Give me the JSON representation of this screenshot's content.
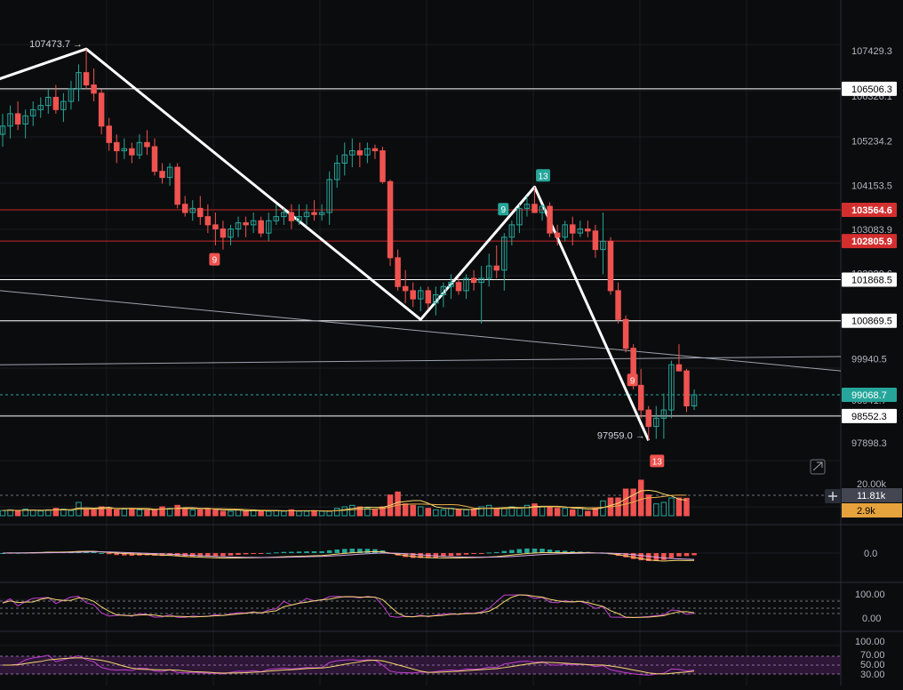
{
  "theme": {
    "background": "#0b0c0e",
    "grid": "#1a1c20",
    "up": "#26a69a",
    "down": "#ef5350",
    "axis_text": "#b2b5be",
    "level_white": "#ffffff",
    "level_red": "#c62828",
    "trend_white": "#ffffff",
    "ma_yellow": "#f5d76e",
    "ma_orange": "#e8b04a",
    "ma_purple": "#c23fd1",
    "current_price": "#26a69a",
    "volume_badge": "#e6a23c"
  },
  "chart_data": [
    {
      "type": "candlestick",
      "panel": "price",
      "title": "",
      "ylim": [
        97600,
        107800
      ],
      "y_ticks": [
        "107429.3",
        "106326.1",
        "105234.2",
        "104153.5",
        "103083.9",
        "102020.6",
        "100869.5",
        "99940.5",
        "98941.7",
        "97898.3"
      ],
      "candles": [
        [
          105400,
          105900,
          105100,
          105600
        ],
        [
          105600,
          106100,
          105300,
          105900
        ],
        [
          105900,
          106200,
          105500,
          105650
        ],
        [
          105650,
          106000,
          105300,
          105850
        ],
        [
          105850,
          106200,
          105600,
          106000
        ],
        [
          106000,
          106300,
          105800,
          106100
        ],
        [
          106100,
          106500,
          105900,
          106300
        ],
        [
          106300,
          106600,
          105900,
          106000
        ],
        [
          106000,
          106400,
          105700,
          106200
        ],
        [
          106200,
          106700,
          106000,
          106500
        ],
        [
          106500,
          107100,
          106200,
          106900
        ],
        [
          106900,
          107474,
          106500,
          106600
        ],
        [
          106600,
          107000,
          106200,
          106400
        ],
        [
          106400,
          106500,
          105400,
          105600
        ],
        [
          105600,
          105800,
          105000,
          105200
        ],
        [
          105200,
          105400,
          104700,
          105000
        ],
        [
          105000,
          105300,
          104800,
          105050
        ],
        [
          105050,
          105200,
          104700,
          104900
        ],
        [
          104900,
          105400,
          104800,
          105200
        ],
        [
          105200,
          105500,
          104900,
          105100
        ],
        [
          105100,
          105300,
          104400,
          104500
        ],
        [
          104500,
          104700,
          104200,
          104350
        ],
        [
          104350,
          104700,
          104150,
          104600
        ],
        [
          104600,
          104700,
          103600,
          103700
        ],
        [
          103700,
          103900,
          103400,
          103500
        ],
        [
          103500,
          103800,
          103300,
          103600
        ],
        [
          103600,
          103900,
          103200,
          103400
        ],
        [
          103400,
          103700,
          103000,
          103200
        ],
        [
          103200,
          103500,
          102700,
          103100
        ],
        [
          103100,
          103300,
          102600,
          102900
        ],
        [
          102900,
          103200,
          102700,
          103100
        ],
        [
          103100,
          103400,
          102900,
          103250
        ],
        [
          103250,
          103400,
          102900,
          103200
        ],
        [
          103200,
          103500,
          103000,
          103300
        ],
        [
          103300,
          103400,
          102900,
          103000
        ],
        [
          103000,
          103500,
          102800,
          103300
        ],
        [
          103300,
          103700,
          103200,
          103400
        ],
        [
          103400,
          103600,
          103200,
          103500
        ],
        [
          103500,
          103700,
          103100,
          103300
        ],
        [
          103300,
          103700,
          103200,
          103400
        ],
        [
          103400,
          103700,
          103200,
          103500
        ],
        [
          103500,
          103800,
          103300,
          103450
        ],
        [
          103450,
          103700,
          103300,
          103500
        ],
        [
          103500,
          104500,
          103200,
          104300
        ],
        [
          104300,
          104900,
          104100,
          104700
        ],
        [
          104700,
          105200,
          104400,
          104900
        ],
        [
          104900,
          105300,
          104600,
          105000
        ],
        [
          105000,
          105200,
          104600,
          104900
        ],
        [
          104900,
          105200,
          104700,
          105050
        ],
        [
          105050,
          105150,
          104800,
          105000
        ],
        [
          105000,
          105100,
          104200,
          104250
        ],
        [
          104250,
          104300,
          102200,
          102400
        ],
        [
          102400,
          102600,
          101600,
          101700
        ],
        [
          101700,
          102100,
          101300,
          101600
        ],
        [
          101600,
          101800,
          101200,
          101400
        ],
        [
          101400,
          101700,
          101100,
          101600
        ],
        [
          101600,
          101700,
          101150,
          101300
        ],
        [
          101300,
          101700,
          101000,
          101500
        ],
        [
          101500,
          101800,
          101200,
          101700
        ],
        [
          101700,
          102000,
          101400,
          101800
        ],
        [
          101800,
          101900,
          101500,
          101600
        ],
        [
          101600,
          102000,
          101400,
          101900
        ],
        [
          101900,
          102100,
          101600,
          101800
        ],
        [
          101800,
          102200,
          100800,
          101900
        ],
        [
          101900,
          102500,
          101700,
          102200
        ],
        [
          102200,
          102700,
          101900,
          102100
        ],
        [
          102100,
          103000,
          101600,
          102900
        ],
        [
          102900,
          103300,
          102700,
          103200
        ],
        [
          103200,
          103700,
          103000,
          103600
        ],
        [
          103600,
          103900,
          103400,
          103700
        ],
        [
          103700,
          104120,
          103500,
          103500
        ],
        [
          103500,
          103700,
          103300,
          103650
        ],
        [
          103650,
          103750,
          102900,
          103000
        ],
        [
          103000,
          103200,
          102700,
          102900
        ],
        [
          102900,
          103300,
          102800,
          103200
        ],
        [
          103200,
          103400,
          102700,
          103000
        ],
        [
          103000,
          103300,
          102900,
          103100
        ],
        [
          103100,
          103300,
          102900,
          103050
        ],
        [
          103050,
          103200,
          102400,
          102600
        ],
        [
          102600,
          103500,
          102000,
          102800
        ],
        [
          102800,
          102900,
          101500,
          101600
        ],
        [
          101600,
          101800,
          100800,
          100900
        ],
        [
          100900,
          101000,
          100100,
          100200
        ],
        [
          100200,
          100300,
          99200,
          99300
        ],
        [
          99300,
          99700,
          98500,
          98700
        ],
        [
          98700,
          98800,
          97959,
          98300
        ],
        [
          98300,
          98800,
          98000,
          98500
        ],
        [
          98500,
          99100,
          98000,
          98700
        ],
        [
          98700,
          99900,
          98500,
          99800
        ],
        [
          99800,
          100300,
          99700,
          99650
        ],
        [
          99650,
          99700,
          98650,
          98800
        ],
        [
          98800,
          99200,
          98700,
          99069
        ]
      ],
      "levels": [
        {
          "price": "106506.3",
          "style": "white"
        },
        {
          "price": "103564.6",
          "style": "red"
        },
        {
          "price": "102805.9",
          "style": "red"
        },
        {
          "price": "101868.5",
          "style": "white"
        },
        {
          "price": "100869.5",
          "style": "white"
        },
        {
          "price": "98552.3",
          "style": "white"
        },
        {
          "price": "99068.7",
          "style": "current"
        }
      ],
      "annotations": [
        {
          "text": "107473.7 →",
          "candle": 11,
          "price": 107473.7
        },
        {
          "text": "97959.0 →",
          "candle": 85,
          "price": 97959.0
        }
      ],
      "td_markers": [
        {
          "text": "9",
          "candle": 28,
          "price": 102600,
          "color": "down",
          "pos": "below"
        },
        {
          "text": "13",
          "candle": 71,
          "price": 104120,
          "color": "up",
          "pos": "above"
        },
        {
          "text": "9",
          "candle": 66,
          "price": 103300,
          "color": "up",
          "pos": "above"
        },
        {
          "text": "9",
          "candle": 83,
          "price": 99150,
          "color": "down",
          "pos": "above"
        },
        {
          "text": "13",
          "candle": 86,
          "price": 97700,
          "color": "down",
          "pos": "below"
        }
      ]
    },
    {
      "type": "bar",
      "panel": "volume",
      "y_ticks": [
        "20.00k"
      ],
      "badges": [
        "11.81k",
        "2.9k"
      ],
      "values": [
        3.5,
        4,
        3,
        4.5,
        3.8,
        3.2,
        4,
        5,
        4.5,
        3.5,
        9,
        4.5,
        4,
        6,
        5,
        4,
        4.5,
        5,
        4,
        3.5,
        4,
        6,
        5,
        7,
        5,
        4,
        4,
        5,
        4,
        3,
        3,
        4,
        3,
        4,
        3,
        3,
        3.5,
        3,
        4,
        3,
        3,
        3.5,
        3,
        3,
        5,
        6,
        7,
        6,
        5,
        4,
        6,
        14,
        16,
        8,
        7,
        6,
        5,
        4,
        4,
        5,
        4,
        4,
        4.5,
        6,
        7,
        4.5,
        5,
        6,
        5,
        7,
        8,
        6,
        6,
        5,
        5,
        4,
        5,
        3,
        5,
        10,
        12,
        12,
        18,
        18,
        24,
        14,
        8,
        9,
        12,
        12,
        11.81
      ]
    },
    {
      "type": "histogram",
      "panel": "macd",
      "y_ticks": [
        "0.0"
      ]
    },
    {
      "type": "line",
      "panel": "stoch",
      "y_ticks": [
        "100.00",
        "0.00"
      ]
    },
    {
      "type": "line",
      "panel": "rsi",
      "y_ticks": [
        "100.00",
        "70.00",
        "50.00",
        "30.00"
      ]
    }
  ]
}
